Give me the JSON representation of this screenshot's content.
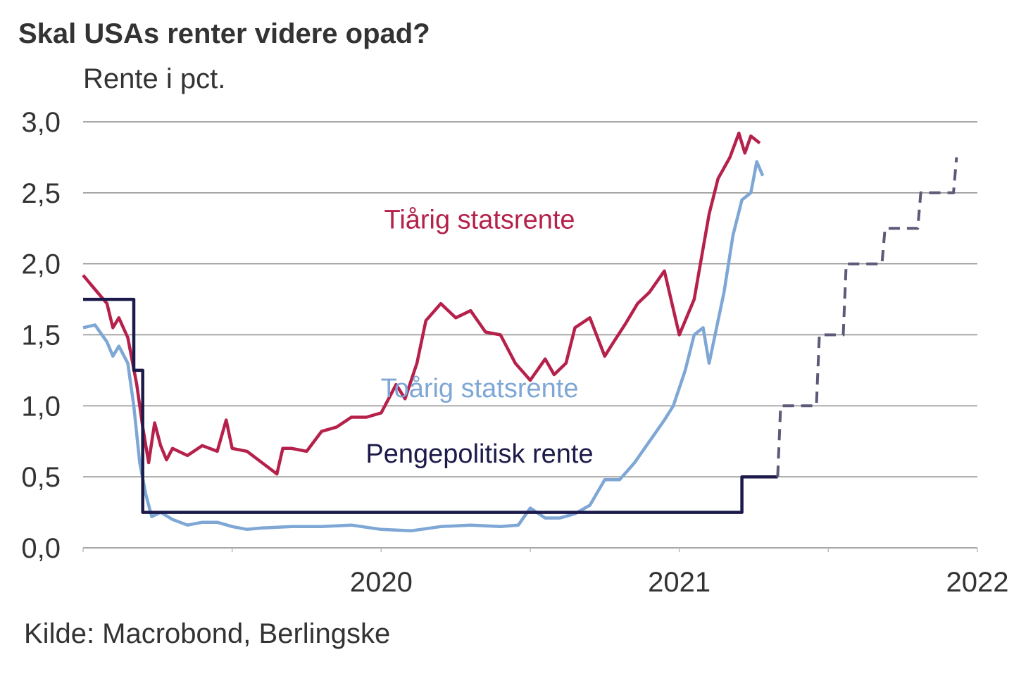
{
  "chart_data": {
    "type": "line",
    "title": "Skal USAs renter videre opad?",
    "ylabel": "Rente i pct.",
    "source": "Kilde: Macrobond, Berlingske",
    "ylim": [
      0,
      3
    ],
    "xlim": [
      2019.5,
      2022.5
    ],
    "y_ticks": [
      {
        "value": 0.0,
        "label": "0,0"
      },
      {
        "value": 0.5,
        "label": "0,5"
      },
      {
        "value": 1.0,
        "label": "1,0"
      },
      {
        "value": 1.5,
        "label": "1,5"
      },
      {
        "value": 2.0,
        "label": "2,0"
      },
      {
        "value": 2.5,
        "label": "2,5"
      },
      {
        "value": 3.0,
        "label": "3,0"
      }
    ],
    "x_ticks": [
      {
        "value": 2020.0,
        "label": "2020"
      },
      {
        "value": 2021.0,
        "label": "2021"
      },
      {
        "value": 2022.0,
        "label": "2022"
      }
    ],
    "grid": true,
    "annotations": [
      {
        "text": "Tiårig statsrente",
        "series": "tiaarig",
        "color": "#b5214b",
        "x": 2020.83,
        "y": 2.25
      },
      {
        "text": "Toårig statsrente",
        "series": "toaarig",
        "color": "#7ea7d6",
        "x": 2020.83,
        "y": 1.06
      },
      {
        "text": "Pengepolitisk rente",
        "series": "pengepolitisk",
        "color": "#1c1a4a",
        "x": 2020.83,
        "y": 0.6
      }
    ],
    "series": [
      {
        "name": "Tiårig statsrente",
        "key": "tiaarig",
        "color": "#b5214b",
        "x": [
          2019.5,
          2019.54,
          2019.58,
          2019.6,
          2019.62,
          2019.65,
          2019.68,
          2019.7,
          2019.72,
          2019.74,
          2019.76,
          2019.78,
          2019.8,
          2019.85,
          2019.9,
          2019.95,
          2019.98,
          2020.0,
          2020.05,
          2020.1,
          2020.15,
          2020.17,
          2020.2,
          2020.25,
          2020.3,
          2020.35,
          2020.4,
          2020.45,
          2020.5,
          2020.55,
          2020.58,
          2020.62,
          2020.65,
          2020.7,
          2020.75,
          2020.8,
          2020.85,
          2020.9,
          2020.95,
          2021.0,
          2021.05,
          2021.08,
          2021.12,
          2021.15,
          2021.2,
          2021.25,
          2021.28,
          2021.32,
          2021.36,
          2021.4,
          2021.45,
          2021.5,
          2021.55,
          2021.6,
          2021.63,
          2021.67,
          2021.7,
          2021.72,
          2021.74,
          2021.77,
          2021.8,
          2021.83,
          2021.86,
          2021.88
        ],
        "values": [
          1.92,
          1.82,
          1.72,
          1.55,
          1.62,
          1.48,
          1.15,
          0.85,
          0.6,
          0.88,
          0.72,
          0.62,
          0.7,
          0.65,
          0.72,
          0.68,
          0.9,
          0.7,
          0.68,
          0.6,
          0.52,
          0.7,
          0.7,
          0.68,
          0.82,
          0.85,
          0.92,
          0.92,
          0.95,
          1.15,
          1.05,
          1.3,
          1.6,
          1.72,
          1.62,
          1.67,
          1.52,
          1.5,
          1.3,
          1.18,
          1.33,
          1.22,
          1.3,
          1.55,
          1.62,
          1.35,
          1.45,
          1.58,
          1.72,
          1.8,
          1.95,
          1.5,
          1.75,
          2.35,
          2.6,
          2.75,
          2.92,
          2.78,
          2.9,
          2.85,
          0,
          0,
          0,
          0
        ]
      },
      {
        "name": "Toårig statsrente",
        "key": "toaarig",
        "color": "#7ea7d6",
        "x": [
          2019.5,
          2019.54,
          2019.58,
          2019.6,
          2019.62,
          2019.65,
          2019.67,
          2019.69,
          2019.71,
          2019.73,
          2019.76,
          2019.8,
          2019.85,
          2019.9,
          2019.95,
          2020.0,
          2020.05,
          2020.1,
          2020.2,
          2020.3,
          2020.4,
          2020.5,
          2020.6,
          2020.7,
          2020.8,
          2020.9,
          2020.96,
          2021.0,
          2021.05,
          2021.1,
          2021.15,
          2021.2,
          2021.25,
          2021.3,
          2021.35,
          2021.4,
          2021.45,
          2021.48,
          2021.52,
          2021.55,
          2021.58,
          2021.6,
          2021.62,
          2021.65,
          2021.68,
          2021.71,
          2021.74,
          2021.76,
          2021.78
        ],
        "values": [
          1.55,
          1.57,
          1.45,
          1.35,
          1.42,
          1.3,
          1.0,
          0.6,
          0.38,
          0.22,
          0.25,
          0.2,
          0.16,
          0.18,
          0.18,
          0.15,
          0.13,
          0.14,
          0.15,
          0.15,
          0.16,
          0.13,
          0.12,
          0.15,
          0.16,
          0.15,
          0.16,
          0.28,
          0.21,
          0.21,
          0.24,
          0.3,
          0.48,
          0.48,
          0.6,
          0.75,
          0.9,
          1.0,
          1.25,
          1.5,
          1.55,
          1.3,
          1.5,
          1.8,
          2.2,
          2.45,
          2.5,
          2.72,
          2.62
        ]
      },
      {
        "name": "Pengepolitisk rente",
        "key": "pengepolitisk",
        "color": "#1c1a4a",
        "x": [
          2019.5,
          2019.67,
          2019.67,
          2019.7,
          2019.7,
          2021.71,
          2021.71,
          2021.83
        ],
        "values": [
          1.75,
          1.75,
          1.25,
          1.25,
          0.25,
          0.25,
          0.5,
          0.5
        ]
      },
      {
        "name": "Pengepolitisk rente (forventning)",
        "key": "pengepolitisk-forventning",
        "color": "#5b5a78",
        "dashed": true,
        "x": [
          2021.83,
          2021.84,
          2021.96,
          2021.97,
          2022.05,
          2022.06,
          2022.18,
          2022.19,
          2022.3,
          2022.31,
          2022.42,
          2022.43
        ],
        "values": [
          0.5,
          1.0,
          1.0,
          1.5,
          1.5,
          2.0,
          2.0,
          2.25,
          2.25,
          2.5,
          2.5,
          2.75
        ]
      }
    ]
  }
}
